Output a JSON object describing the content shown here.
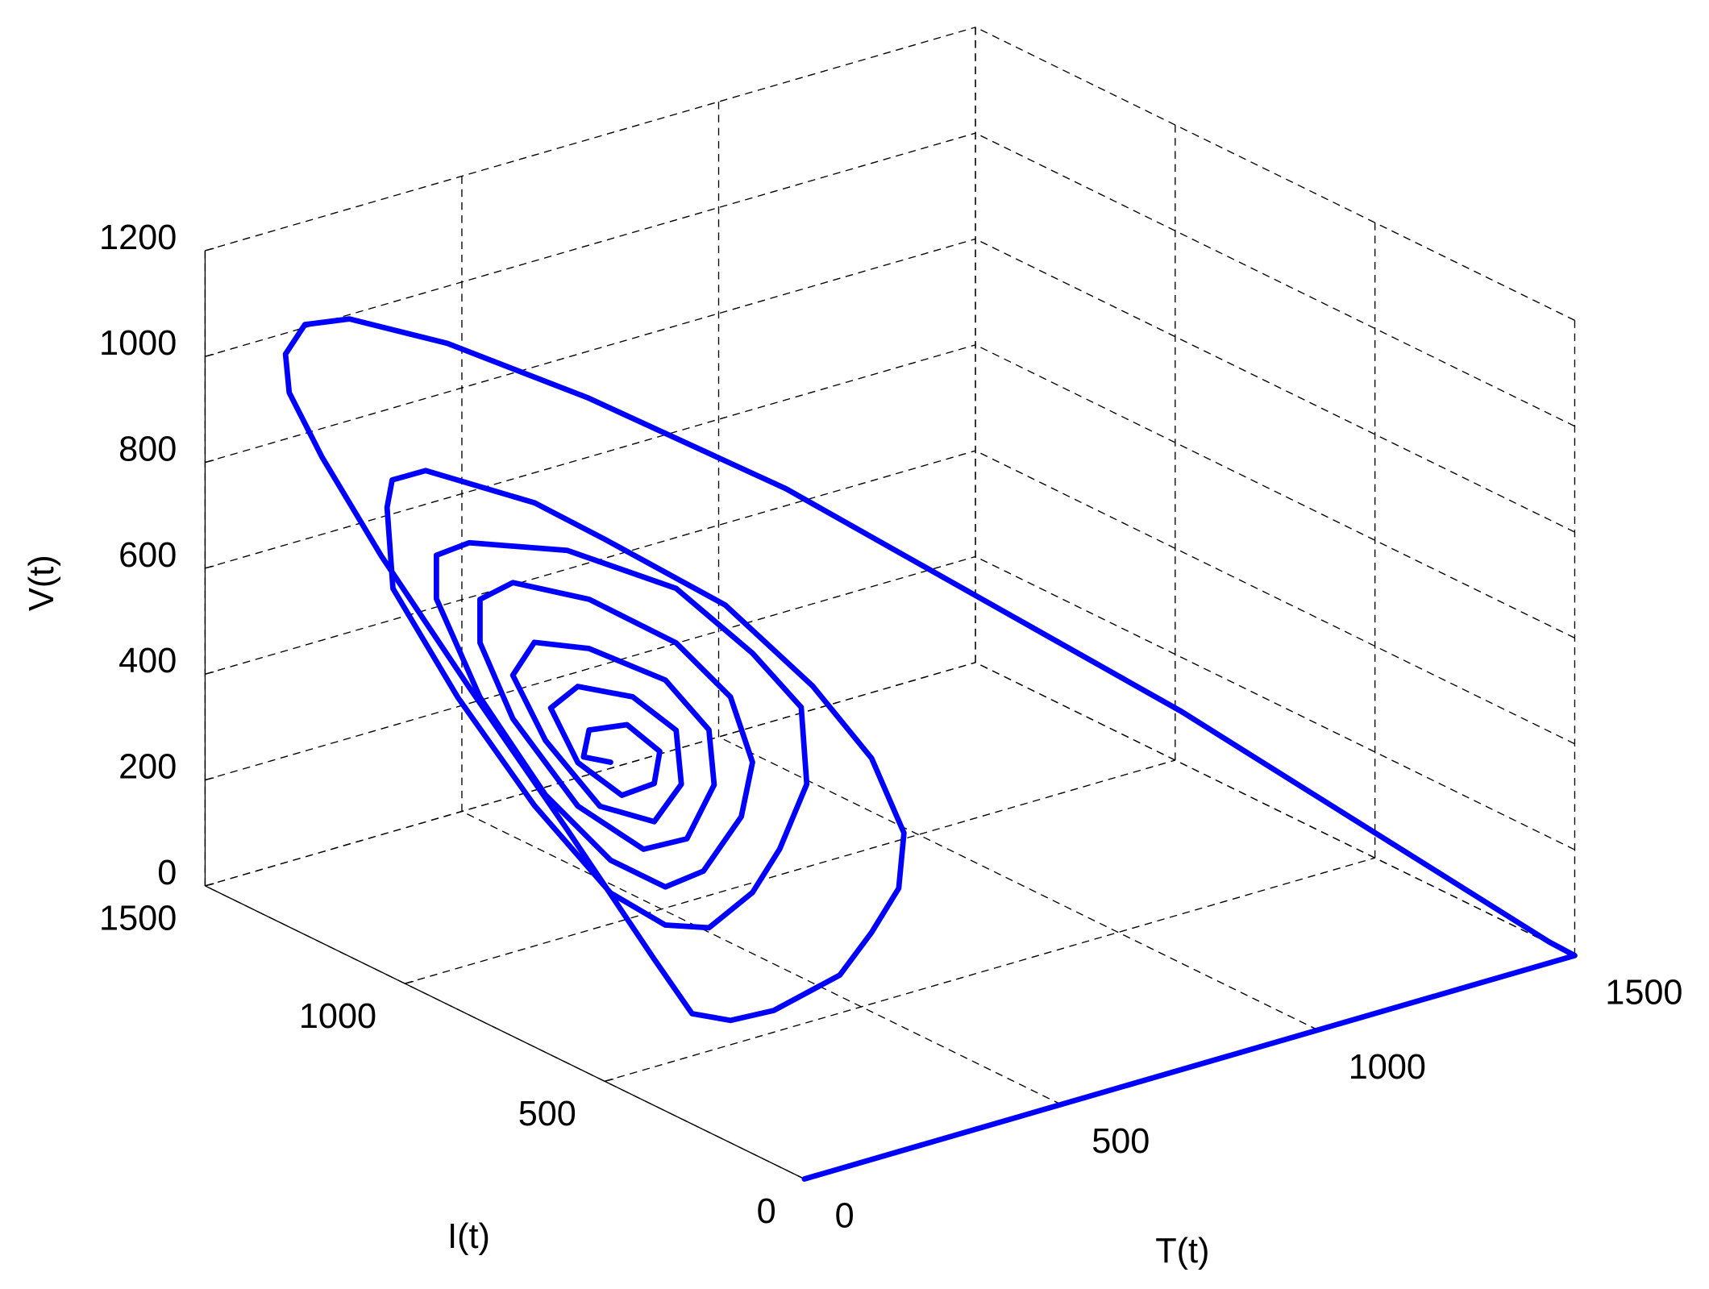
{
  "chart_data": {
    "type": "line3d",
    "xlabel": "T(t)",
    "ylabel": "I(t)",
    "zlabel": "V(t)",
    "color": "#0000ff",
    "grid": true,
    "xlim": [
      0,
      1500
    ],
    "ylim": [
      0,
      1500
    ],
    "zlim": [
      0,
      1200
    ],
    "xticks": [
      0,
      500,
      1000,
      1500
    ],
    "yticks": [
      0,
      500,
      1000,
      1500
    ],
    "zticks": [
      0,
      200,
      400,
      600,
      800,
      1000,
      1200
    ],
    "x": [
      0,
      700,
      1300,
      1500,
      1450,
      1100,
      750,
      550,
      350,
      200,
      150,
      120,
      100,
      90,
      80,
      80,
      100,
      120,
      150,
      200,
      250,
      300,
      320,
      330,
      330,
      320,
      300,
      270,
      250,
      230,
      200,
      190,
      180,
      200,
      200,
      200,
      200,
      200,
      200,
      200,
      200,
      200,
      200,
      200,
      200,
      200,
      200,
      200,
      200,
      200,
      200,
      200,
      200,
      200,
      200,
      200,
      200,
      200,
      200,
      200,
      200,
      200,
      200,
      200,
      200,
      200,
      200,
      200,
      200,
      200,
      200,
      200,
      200,
      200,
      200,
      200,
      200,
      200,
      200,
      200,
      200,
      200,
      200,
      200,
      200,
      200,
      200,
      200
    ],
    "y": [
      0,
      0,
      0,
      0,
      0,
      470,
      1010,
      1250,
      1344,
      1396,
      1443,
      1453,
      1418,
      1323,
      1162,
      944,
      723,
      532,
      474,
      442,
      398,
      297,
      243,
      188,
      175,
      243,
      365,
      545,
      821,
      971,
      1205,
      1276,
      1276,
      1287,
      1124,
      933,
      742,
      605,
      496,
      387,
      319,
      251,
      265,
      387,
      578,
      851,
      1096,
      1178,
      1178,
      1069,
      905,
      742,
      605,
      510,
      415,
      387,
      442,
      578,
      796,
      987,
      1069,
      1069,
      987,
      824,
      660,
      551,
      483,
      496,
      605,
      796,
      933,
      987,
      905,
      769,
      633,
      565,
      578,
      687,
      824,
      892,
      824,
      714,
      633,
      619,
      701,
      796,
      810,
      742
    ],
    "z": [
      0,
      0,
      0,
      0,
      40,
      400,
      720,
      860,
      984,
      1053,
      1039,
      988,
      934,
      850,
      726,
      560,
      366,
      187,
      95,
      80,
      101,
      191,
      286,
      387,
      496,
      615,
      712,
      807,
      835,
      854,
      837,
      796,
      747,
      584,
      438,
      305,
      210,
      200,
      235,
      342,
      449,
      597,
      737,
      794,
      846,
      817,
      741,
      687,
      605,
      459,
      335,
      272,
      272,
      337,
      475,
      588,
      691,
      743,
      745,
      706,
      644,
      562,
      449,
      344,
      323,
      383,
      510,
      609,
      663,
      652,
      613,
      531,
      438,
      364,
      385,
      481,
      578,
      601,
      570,
      504,
      426,
      405,
      457,
      523,
      543,
      498,
      442,
      457
    ]
  }
}
